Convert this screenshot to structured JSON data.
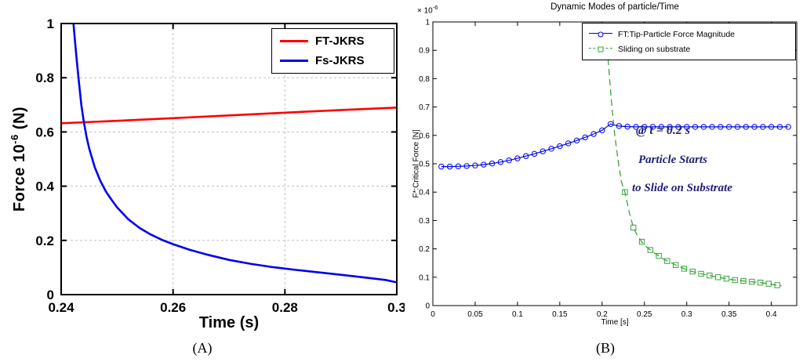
{
  "colors": {
    "red": "#ff0000",
    "blue": "#0000ee",
    "green": "#3aa43a",
    "annotation": "#1f1f78",
    "grid": "#c0c0c0",
    "axis": "#000000"
  },
  "figure": {
    "caption_a": "(A)",
    "caption_b": "(B)"
  },
  "chart_data": [
    {
      "id": "A",
      "type": "line",
      "title": "",
      "xlabel": "Time (s)",
      "ylabel": {
        "prefix": "Force  10",
        "exp": "-6",
        "suffix": " (N)"
      },
      "xlim": [
        0.24,
        0.3
      ],
      "ylim": [
        0,
        1
      ],
      "xticks": {
        "values": [
          0.24,
          0.26,
          0.28,
          0.3
        ],
        "labels": [
          "0.24",
          "0.26",
          "0.28",
          "0.3"
        ]
      },
      "yticks": {
        "values": [
          0,
          0.2,
          0.4,
          0.6,
          0.8,
          1
        ],
        "labels": [
          "0",
          "0.2",
          "0.4",
          "0.6",
          "0.8",
          "1"
        ]
      },
      "grid": true,
      "legend_position": "top-right",
      "series": [
        {
          "name": "FT-JKRS",
          "color": "#ff0000",
          "width": 2.6,
          "marker": null,
          "dash": false,
          "points": [
            [
              0.24,
              0.632
            ],
            [
              0.25,
              0.641
            ],
            [
              0.26,
              0.651
            ],
            [
              0.27,
              0.661
            ],
            [
              0.28,
              0.671
            ],
            [
              0.29,
              0.681
            ],
            [
              0.3,
              0.69
            ]
          ]
        },
        {
          "name": "Fs-JKRS",
          "color": "#0000ee",
          "width": 2.6,
          "marker": null,
          "dash": false,
          "points": [
            [
              0.2422,
              1.0
            ],
            [
              0.2425,
              0.93
            ],
            [
              0.2428,
              0.86
            ],
            [
              0.2432,
              0.78
            ],
            [
              0.2436,
              0.7
            ],
            [
              0.244,
              0.645
            ],
            [
              0.2445,
              0.585
            ],
            [
              0.245,
              0.54
            ],
            [
              0.246,
              0.47
            ],
            [
              0.247,
              0.42
            ],
            [
              0.248,
              0.38
            ],
            [
              0.249,
              0.35
            ],
            [
              0.25,
              0.322
            ],
            [
              0.252,
              0.278
            ],
            [
              0.254,
              0.246
            ],
            [
              0.256,
              0.222
            ],
            [
              0.258,
              0.202
            ],
            [
              0.26,
              0.186
            ],
            [
              0.263,
              0.165
            ],
            [
              0.266,
              0.148
            ],
            [
              0.27,
              0.128
            ],
            [
              0.274,
              0.113
            ],
            [
              0.278,
              0.101
            ],
            [
              0.282,
              0.091
            ],
            [
              0.286,
              0.082
            ],
            [
              0.29,
              0.073
            ],
            [
              0.294,
              0.064
            ],
            [
              0.298,
              0.054
            ],
            [
              0.3,
              0.045
            ]
          ]
        }
      ]
    },
    {
      "id": "B",
      "type": "line",
      "title": "Dynamic Modes of particle/Time",
      "xlabel": "Time [s]",
      "ylabel": "F*:Critical Force [N]",
      "y_exponent": {
        "prefix": "× 10",
        "exp": "-6"
      },
      "xlim": [
        0,
        0.43
      ],
      "ylim": [
        0,
        1
      ],
      "xticks": {
        "values": [
          0,
          0.05,
          0.1,
          0.15,
          0.2,
          0.25,
          0.3,
          0.35,
          0.4
        ],
        "labels": [
          "0",
          "0.05",
          "0.1",
          "0.15",
          "0.2",
          "0.25",
          "0.3",
          "0.35",
          "0.4"
        ]
      },
      "yticks": {
        "values": [
          0,
          0.1,
          0.2,
          0.3,
          0.4,
          0.5,
          0.6,
          0.7,
          0.8,
          0.9,
          1
        ],
        "labels": [
          "0",
          "0.1",
          "0.2",
          "0.3",
          "0.4",
          "0.5",
          "0.6",
          "0.7",
          "0.8",
          "0.9",
          "1"
        ]
      },
      "grid": false,
      "legend_position": "top-right",
      "series": [
        {
          "name": "FT:Tip-Particle Force Magnitude",
          "color": "#0000ee",
          "width": 1.2,
          "marker": "circle",
          "dash": false,
          "points": [
            [
              0.01,
              0.49
            ],
            [
              0.02,
              0.49
            ],
            [
              0.03,
              0.491
            ],
            [
              0.04,
              0.492
            ],
            [
              0.05,
              0.494
            ],
            [
              0.06,
              0.497
            ],
            [
              0.07,
              0.501
            ],
            [
              0.08,
              0.506
            ],
            [
              0.09,
              0.512
            ],
            [
              0.1,
              0.519
            ],
            [
              0.11,
              0.527
            ],
            [
              0.12,
              0.535
            ],
            [
              0.13,
              0.544
            ],
            [
              0.14,
              0.553
            ],
            [
              0.15,
              0.562
            ],
            [
              0.16,
              0.572
            ],
            [
              0.17,
              0.582
            ],
            [
              0.18,
              0.593
            ],
            [
              0.19,
              0.605
            ],
            [
              0.2,
              0.618
            ],
            [
              0.21,
              0.64
            ],
            [
              0.22,
              0.633
            ],
            [
              0.23,
              0.631
            ],
            [
              0.24,
              0.63
            ],
            [
              0.25,
              0.63
            ],
            [
              0.26,
              0.63
            ],
            [
              0.27,
              0.63
            ],
            [
              0.28,
              0.63
            ],
            [
              0.29,
              0.63
            ],
            [
              0.3,
              0.63
            ],
            [
              0.31,
              0.63
            ],
            [
              0.32,
              0.63
            ],
            [
              0.33,
              0.63
            ],
            [
              0.34,
              0.63
            ],
            [
              0.35,
              0.63
            ],
            [
              0.36,
              0.63
            ],
            [
              0.37,
              0.63
            ],
            [
              0.38,
              0.63
            ],
            [
              0.39,
              0.63
            ],
            [
              0.4,
              0.63
            ],
            [
              0.41,
              0.63
            ],
            [
              0.42,
              0.63
            ]
          ]
        },
        {
          "name": "Sliding on substrate",
          "color": "#3aa43a",
          "width": 1.3,
          "marker": "square",
          "dash": true,
          "points": [
            [
              0.207,
              0.87
            ],
            [
              0.211,
              0.72
            ],
            [
              0.215,
              0.6
            ],
            [
              0.219,
              0.51
            ],
            [
              0.223,
              0.435
            ],
            [
              0.227,
              0.4
            ],
            [
              0.232,
              0.33
            ],
            [
              0.237,
              0.275
            ],
            [
              0.242,
              0.245
            ],
            [
              0.247,
              0.225
            ],
            [
              0.252,
              0.208
            ],
            [
              0.257,
              0.196
            ],
            [
              0.262,
              0.185
            ],
            [
              0.267,
              0.175
            ],
            [
              0.272,
              0.165
            ],
            [
              0.277,
              0.157
            ],
            [
              0.282,
              0.15
            ],
            [
              0.287,
              0.143
            ],
            [
              0.292,
              0.136
            ],
            [
              0.297,
              0.13
            ],
            [
              0.302,
              0.125
            ],
            [
              0.307,
              0.12
            ],
            [
              0.312,
              0.116
            ],
            [
              0.317,
              0.112
            ],
            [
              0.322,
              0.109
            ],
            [
              0.327,
              0.106
            ],
            [
              0.332,
              0.103
            ],
            [
              0.337,
              0.1
            ],
            [
              0.342,
              0.097
            ],
            [
              0.347,
              0.095
            ],
            [
              0.352,
              0.092
            ],
            [
              0.357,
              0.09
            ],
            [
              0.362,
              0.088
            ],
            [
              0.367,
              0.087
            ],
            [
              0.372,
              0.085
            ],
            [
              0.377,
              0.084
            ],
            [
              0.382,
              0.082
            ],
            [
              0.387,
              0.081
            ],
            [
              0.392,
              0.079
            ],
            [
              0.397,
              0.077
            ],
            [
              0.402,
              0.074
            ],
            [
              0.407,
              0.072
            ],
            [
              0.412,
              0.07
            ]
          ],
          "marker_points": [
            [
              0.227,
              0.4
            ],
            [
              0.237,
              0.275
            ],
            [
              0.247,
              0.225
            ],
            [
              0.257,
              0.196
            ],
            [
              0.267,
              0.175
            ],
            [
              0.277,
              0.157
            ],
            [
              0.287,
              0.143
            ],
            [
              0.297,
              0.13
            ],
            [
              0.307,
              0.12
            ],
            [
              0.317,
              0.112
            ],
            [
              0.327,
              0.106
            ],
            [
              0.337,
              0.1
            ],
            [
              0.347,
              0.095
            ],
            [
              0.357,
              0.09
            ],
            [
              0.367,
              0.087
            ],
            [
              0.377,
              0.084
            ],
            [
              0.387,
              0.081
            ],
            [
              0.397,
              0.077
            ],
            [
              0.407,
              0.072
            ]
          ]
        }
      ],
      "annotations": [
        {
          "text": "@ t = 0.2 s"
        },
        {
          "text": "Particle Starts"
        },
        {
          "text": "to Slide on Substrate"
        }
      ]
    }
  ]
}
